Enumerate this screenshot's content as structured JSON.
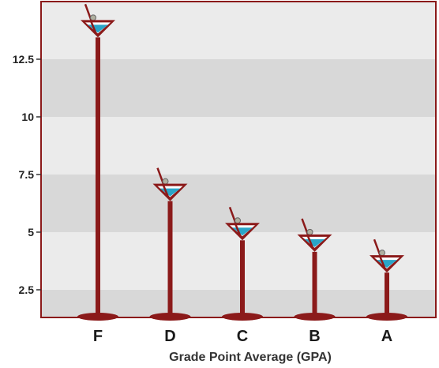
{
  "chart_data": {
    "type": "bar",
    "title": "",
    "xlabel": "Grade Point Average (GPA)",
    "ylabel": "",
    "categories": [
      "F",
      "D",
      "C",
      "B",
      "A"
    ],
    "values": [
      14.2,
      7.1,
      5.4,
      4.9,
      4.0
    ],
    "ylim": [
      1.3,
      15.0
    ],
    "yticks": [
      2.5,
      5,
      7.5,
      10,
      12.5
    ],
    "ytick_labels": [
      "2.5",
      "5",
      "7.5",
      "10",
      "12.5"
    ],
    "grid": "alternating horizontal bands",
    "legend": "none",
    "mark_style": "martini-glass pictograph"
  },
  "colors": {
    "band_dark": "#d8d8d8",
    "band_light": "#ebebeb",
    "frame": "#8b1a1a",
    "glass": "#8b1a1a",
    "liquid": "#2aa5c8",
    "olive": "#b0b0a0"
  }
}
